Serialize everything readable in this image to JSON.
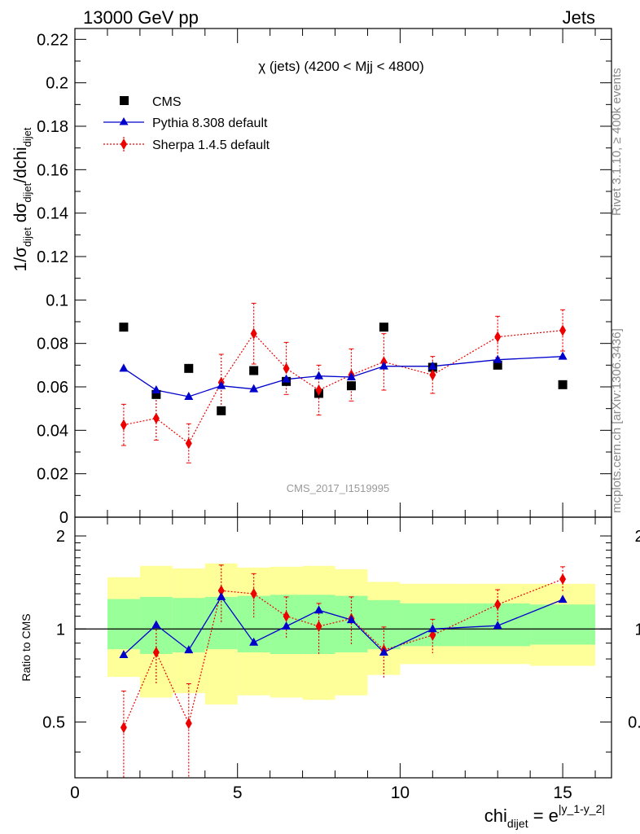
{
  "header": {
    "left": "13000 GeV pp",
    "right": "Jets"
  },
  "side_labels": {
    "rivet": "Rivet 3.1.10, ≥ 400k events",
    "mcplots": "mcplots.cern.ch [arXiv:1306.3436]"
  },
  "chart_data": {
    "type": "scatter",
    "title": "χ (jets) (4200 < Mjj < 4800)",
    "watermark": "CMS_2017_I1519995",
    "xlabel": {
      "base": "chi",
      "sub": "dijet",
      "eq": " = e",
      "sup": "|y_1-y_2|"
    },
    "ylabel": {
      "t1": "1/σ",
      "s1": "dijet",
      "t2": " dσ",
      "s2": "dijet",
      "t3": "/dchi",
      "s3": "dijet"
    },
    "ratio_ylabel": "Ratio to CMS",
    "xlim": [
      0,
      16.5
    ],
    "ylim": [
      0,
      0.225
    ],
    "ratio_ylim": [
      0.33,
      2.3
    ],
    "x_ticks": [
      "0",
      "5",
      "10",
      "15"
    ],
    "y_ticks": [
      "0",
      "0.02",
      "0.04",
      "0.06",
      "0.08",
      "0.1",
      "0.12",
      "0.14",
      "0.16",
      "0.18",
      "0.2",
      "0.22"
    ],
    "ratio_ticks": [
      "0.5",
      "1",
      "2"
    ],
    "legend_position": "top-left",
    "series": [
      {
        "name": "CMS",
        "marker": "square",
        "color": "#000000",
        "x": [
          1.5,
          2.5,
          3.5,
          4.5,
          5.5,
          6.5,
          7.5,
          8.5,
          9.5,
          11,
          13,
          15
        ],
        "y": [
          0.0875,
          0.0565,
          0.0685,
          0.049,
          0.0675,
          0.0625,
          0.057,
          0.0605,
          0.0875,
          0.069,
          0.07,
          0.061
        ]
      },
      {
        "name": "Pythia 8.308 default",
        "marker": "triangle",
        "color": "#0000cc",
        "x": [
          1.5,
          2.5,
          3.5,
          4.5,
          5.5,
          6.5,
          7.5,
          8.5,
          9.5,
          11,
          13,
          15
        ],
        "y": [
          0.0685,
          0.0585,
          0.0555,
          0.0605,
          0.059,
          0.0635,
          0.065,
          0.0645,
          0.0695,
          0.0695,
          0.0725,
          0.074
        ],
        "ratio": [
          0.825,
          1.03,
          0.855,
          1.27,
          0.905,
          1.02,
          1.15,
          1.07,
          0.84,
          1.0,
          1.025,
          1.245
        ]
      },
      {
        "name": "Sherpa 1.4.5 default",
        "marker": "diamond",
        "color": "#ee0000",
        "x": [
          1.5,
          2.5,
          3.5,
          4.5,
          5.5,
          6.5,
          7.5,
          8.5,
          9.5,
          11,
          13,
          15
        ],
        "y": [
          0.0425,
          0.0455,
          0.034,
          0.062,
          0.0845,
          0.0685,
          0.0585,
          0.0655,
          0.0715,
          0.0655,
          0.083,
          0.086
        ],
        "yerr": [
          0.0095,
          0.01,
          0.009,
          0.013,
          0.014,
          0.012,
          0.0115,
          0.012,
          0.013,
          0.0085,
          0.0095,
          0.0095
        ],
        "ratio": [
          0.48,
          0.84,
          0.495,
          1.33,
          1.3,
          1.1,
          1.02,
          1.08,
          0.855,
          0.955,
          1.2,
          1.45
        ],
        "ratio_err": [
          0.15,
          0.18,
          0.17,
          0.28,
          0.21,
          0.17,
          0.19,
          0.19,
          0.16,
          0.12,
          0.14,
          0.14
        ]
      }
    ],
    "bands": {
      "x_edges": [
        1,
        2,
        3,
        4,
        5,
        6,
        7,
        8,
        9,
        10,
        12,
        14,
        16
      ],
      "stat_low": [
        0.86,
        0.83,
        0.84,
        0.86,
        0.84,
        0.83,
        0.83,
        0.84,
        0.86,
        0.88,
        0.88,
        0.89
      ],
      "stat_high": [
        1.25,
        1.27,
        1.26,
        1.27,
        1.28,
        1.29,
        1.29,
        1.28,
        1.24,
        1.21,
        1.21,
        1.2
      ],
      "tot_low": [
        0.7,
        0.6,
        0.62,
        0.57,
        0.61,
        0.6,
        0.59,
        0.61,
        0.71,
        0.77,
        0.77,
        0.76
      ],
      "tot_high": [
        1.47,
        1.6,
        1.57,
        1.63,
        1.58,
        1.59,
        1.6,
        1.56,
        1.42,
        1.4,
        1.4,
        1.4
      ],
      "stat_color": "#99ff99",
      "tot_color": "#ffff99"
    }
  }
}
